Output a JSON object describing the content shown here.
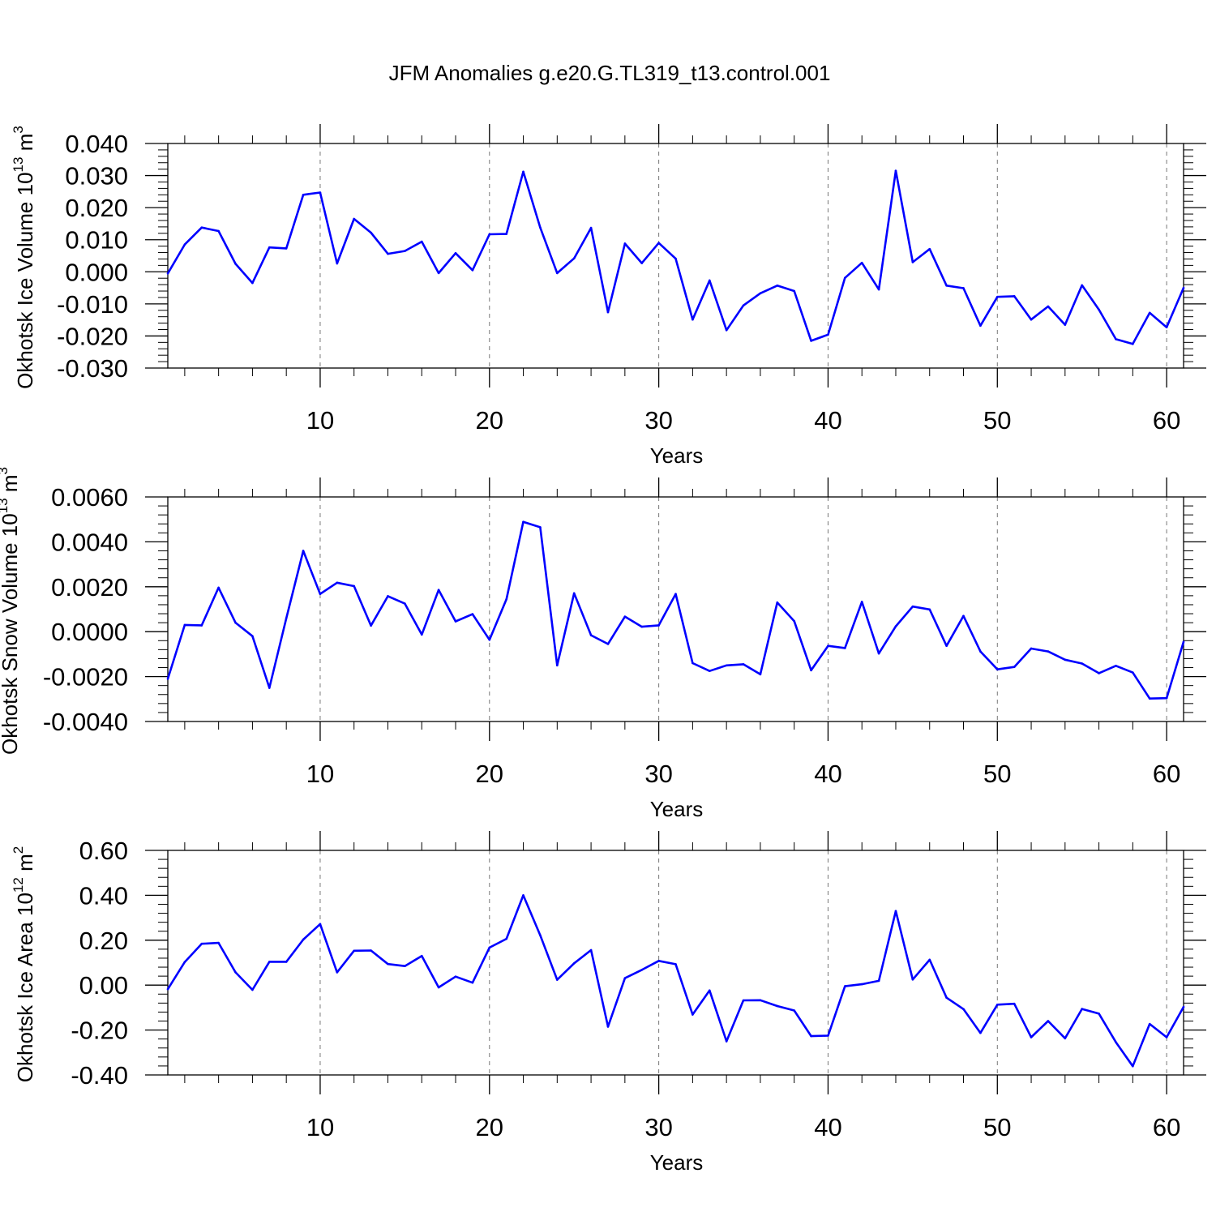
{
  "title": "JFM Anomalies g.e20.G.TL319_t13.control.001",
  "chart_data": [
    {
      "type": "line",
      "name": "ice-volume",
      "ylabel": "Okhotsk Ice Volume 10",
      "ylabel_exp": "13",
      "ylabel_unit": " m",
      "ylabel_unit_exp": "3",
      "xlabel": "Years",
      "xlim": [
        1,
        61
      ],
      "ylim": [
        -0.03,
        0.04
      ],
      "x_ticks": [
        10,
        20,
        30,
        40,
        50,
        60
      ],
      "x_tick_labels": [
        "10",
        "20",
        "30",
        "40",
        "50",
        "60"
      ],
      "y_ticks": [
        -0.03,
        -0.02,
        -0.01,
        0.0,
        0.01,
        0.02,
        0.03,
        0.04
      ],
      "y_tick_labels": [
        "-0.030",
        "-0.020",
        "-0.010",
        "0.000",
        "0.010",
        "0.020",
        "0.030",
        "0.040"
      ],
      "y_minor_step": 0.002,
      "color": "#0000ff",
      "x": [
        1,
        2,
        3,
        4,
        5,
        6,
        7,
        8,
        9,
        10,
        11,
        12,
        13,
        14,
        15,
        16,
        17,
        18,
        19,
        20,
        21,
        22,
        23,
        24,
        25,
        26,
        27,
        28,
        29,
        30,
        31,
        32,
        33,
        34,
        35,
        36,
        37,
        38,
        39,
        40,
        41,
        42,
        43,
        44,
        45,
        46,
        47,
        48,
        49,
        50,
        51,
        52,
        53,
        54,
        55,
        56,
        57,
        58,
        59,
        60,
        61
      ],
      "values": [
        -0.0005,
        0.0085,
        0.0138,
        0.0127,
        0.0025,
        -0.0035,
        0.0076,
        0.0073,
        0.024,
        0.0247,
        0.0026,
        0.0165,
        0.0122,
        0.0056,
        0.0065,
        0.0094,
        -0.0004,
        0.0058,
        0.0005,
        0.0117,
        0.0118,
        0.0312,
        0.0138,
        -0.0004,
        0.0042,
        0.0137,
        -0.0126,
        0.0088,
        0.0027,
        0.009,
        0.0041,
        -0.0149,
        -0.0027,
        -0.0182,
        -0.0105,
        -0.0067,
        -0.0043,
        -0.006,
        -0.0215,
        -0.0196,
        -0.0019,
        0.0028,
        -0.0055,
        0.0315,
        0.003,
        0.0071,
        -0.0043,
        -0.0051,
        -0.0168,
        -0.0078,
        -0.0076,
        -0.0149,
        -0.0108,
        -0.0165,
        -0.0042,
        -0.0118,
        -0.021,
        -0.0225,
        -0.0128,
        -0.0173,
        -0.005
      ]
    },
    {
      "type": "line",
      "name": "snow-volume",
      "ylabel": "Okhotsk Snow Volume 10",
      "ylabel_exp": "13",
      "ylabel_unit": " m",
      "ylabel_unit_exp": "3",
      "xlabel": "Years",
      "xlim": [
        1,
        61
      ],
      "ylim": [
        -0.004,
        0.006
      ],
      "x_ticks": [
        10,
        20,
        30,
        40,
        50,
        60
      ],
      "x_tick_labels": [
        "10",
        "20",
        "30",
        "40",
        "50",
        "60"
      ],
      "y_ticks": [
        -0.004,
        -0.002,
        0.0,
        0.002,
        0.004,
        0.006
      ],
      "y_tick_labels": [
        "-0.0040",
        "-0.0020",
        "0.0000",
        "0.0020",
        "0.0040",
        "0.0060"
      ],
      "y_minor_step": 0.0004,
      "color": "#0000ff",
      "x": [
        1,
        2,
        3,
        4,
        5,
        6,
        7,
        8,
        9,
        10,
        11,
        12,
        13,
        14,
        15,
        16,
        17,
        18,
        19,
        20,
        21,
        22,
        23,
        24,
        25,
        26,
        27,
        28,
        29,
        30,
        31,
        32,
        33,
        34,
        35,
        36,
        37,
        38,
        39,
        40,
        41,
        42,
        43,
        44,
        45,
        46,
        47,
        48,
        49,
        50,
        51,
        52,
        53,
        54,
        55,
        56,
        57,
        58,
        59,
        60,
        61
      ],
      "values": [
        -0.0021,
        0.0003,
        0.00028,
        0.00196,
        0.0004,
        -0.0002,
        -0.0025,
        0.0006,
        0.0036,
        0.00168,
        0.00218,
        0.00203,
        0.00027,
        0.00158,
        0.00125,
        -0.00013,
        0.00186,
        0.00046,
        0.00078,
        -0.00036,
        0.00144,
        0.00489,
        0.00465,
        -0.0015,
        0.00171,
        -0.00016,
        -0.00055,
        0.00067,
        0.00022,
        0.00028,
        0.00168,
        -0.0014,
        -0.00175,
        -0.0015,
        -0.00145,
        -0.0019,
        0.0013,
        0.00047,
        -0.00172,
        -0.00063,
        -0.00073,
        0.00133,
        -0.00097,
        0.00024,
        0.00112,
        0.00099,
        -0.00063,
        0.0007,
        -0.00088,
        -0.00168,
        -0.00157,
        -0.00075,
        -0.00088,
        -0.00125,
        -0.00142,
        -0.00185,
        -0.00152,
        -0.00182,
        -0.00298,
        -0.00296,
        -0.00045
      ]
    },
    {
      "type": "line",
      "name": "ice-area",
      "ylabel": "Okhotsk Ice Area 10",
      "ylabel_exp": "12",
      "ylabel_unit": " m",
      "ylabel_unit_exp": "2",
      "xlabel": "Years",
      "xlim": [
        1,
        61
      ],
      "ylim": [
        -0.4,
        0.6
      ],
      "x_ticks": [
        10,
        20,
        30,
        40,
        50,
        60
      ],
      "x_tick_labels": [
        "10",
        "20",
        "30",
        "40",
        "50",
        "60"
      ],
      "y_ticks": [
        -0.4,
        -0.2,
        0.0,
        0.2,
        0.4,
        0.6
      ],
      "y_tick_labels": [
        "-0.40",
        "-0.20",
        "0.00",
        "0.20",
        "0.40",
        "0.60"
      ],
      "y_minor_step": 0.04,
      "color": "#0000ff",
      "x": [
        1,
        2,
        3,
        4,
        5,
        6,
        7,
        8,
        9,
        10,
        11,
        12,
        13,
        14,
        15,
        16,
        17,
        18,
        19,
        20,
        21,
        22,
        23,
        24,
        25,
        26,
        27,
        28,
        29,
        30,
        31,
        32,
        33,
        34,
        35,
        36,
        37,
        38,
        39,
        40,
        41,
        42,
        43,
        44,
        45,
        46,
        47,
        48,
        49,
        50,
        51,
        52,
        53,
        54,
        55,
        56,
        57,
        58,
        59,
        60,
        61
      ],
      "values": [
        -0.018,
        0.103,
        0.184,
        0.188,
        0.057,
        -0.021,
        0.104,
        0.104,
        0.203,
        0.272,
        0.057,
        0.153,
        0.154,
        0.094,
        0.085,
        0.13,
        -0.01,
        0.038,
        0.011,
        0.167,
        0.206,
        0.4,
        0.222,
        0.024,
        0.097,
        0.156,
        -0.185,
        0.031,
        0.068,
        0.108,
        0.093,
        -0.131,
        -0.024,
        -0.25,
        -0.068,
        -0.067,
        -0.093,
        -0.113,
        -0.227,
        -0.225,
        -0.005,
        0.004,
        0.019,
        0.33,
        0.025,
        0.113,
        -0.056,
        -0.107,
        -0.213,
        -0.087,
        -0.083,
        -0.232,
        -0.16,
        -0.237,
        -0.106,
        -0.127,
        -0.254,
        -0.361,
        -0.173,
        -0.232,
        -0.097
      ]
    }
  ]
}
